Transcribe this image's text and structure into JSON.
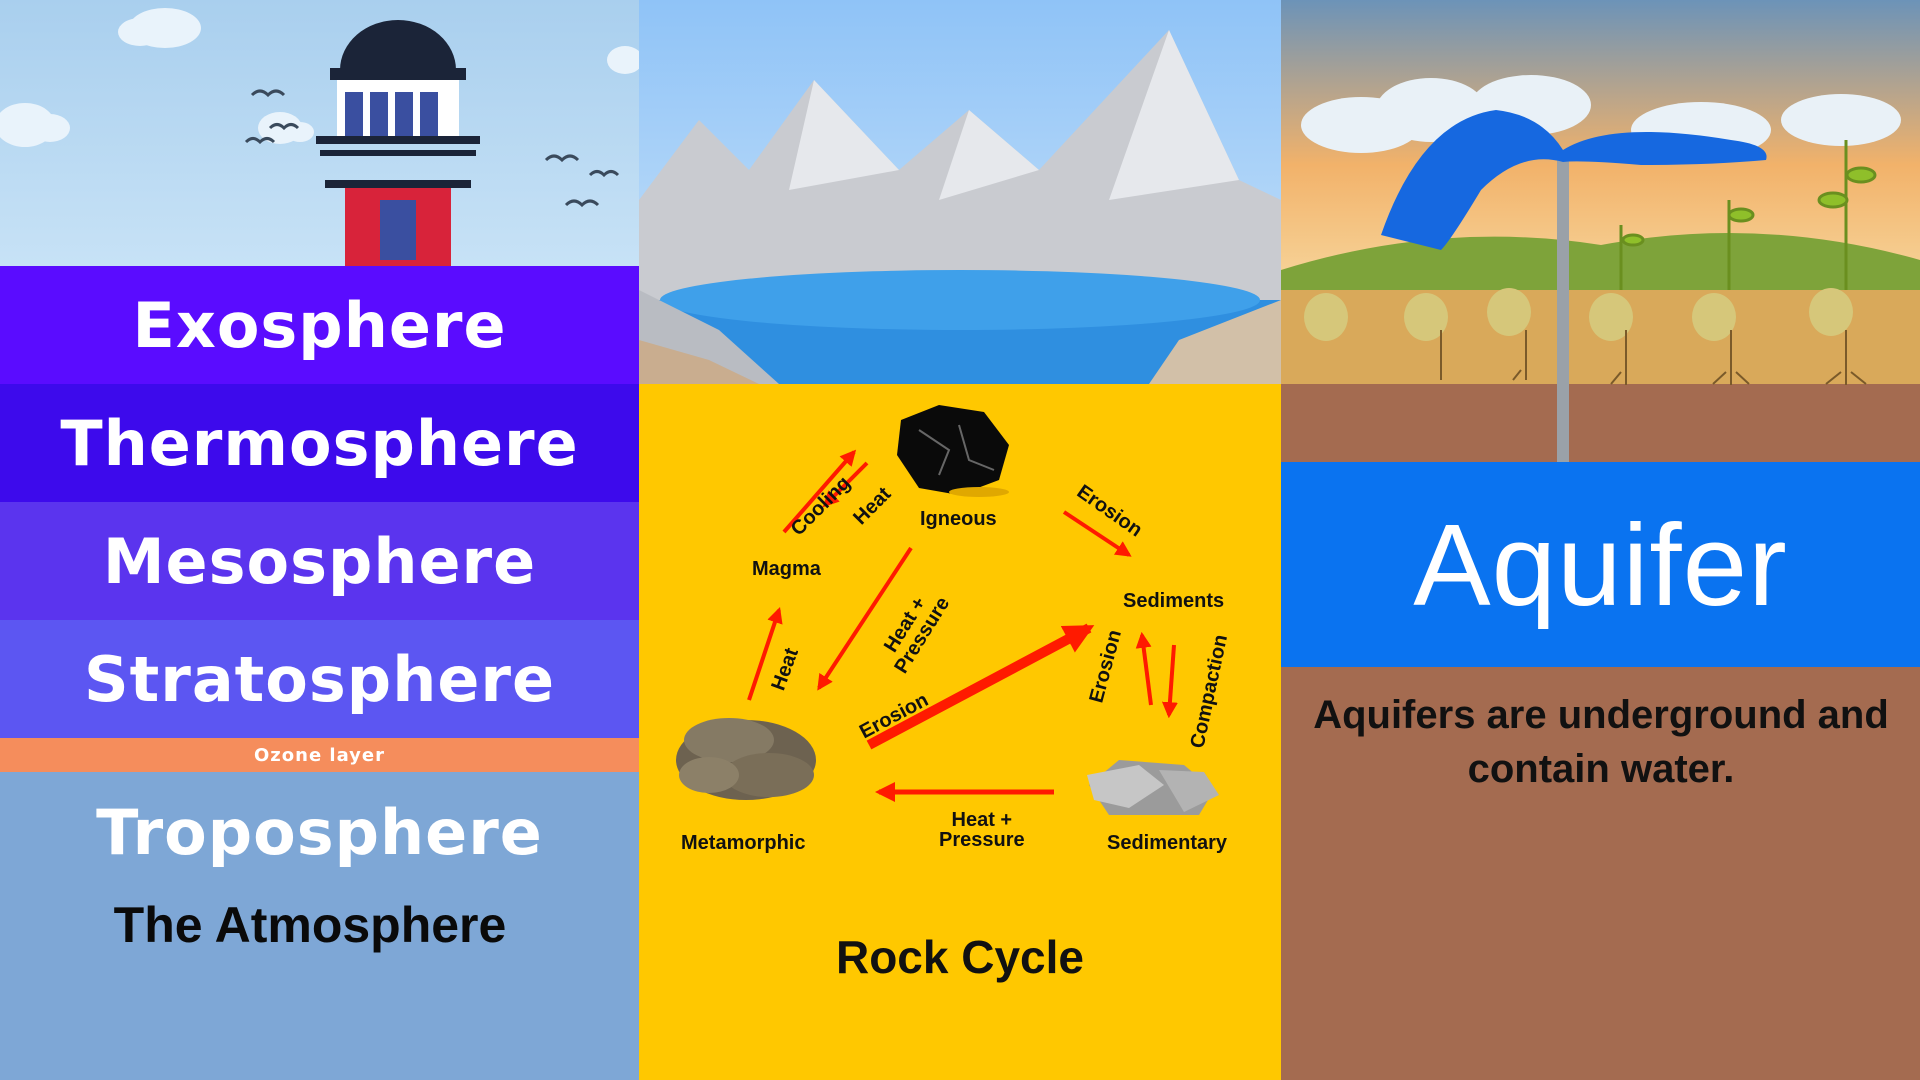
{
  "atmosphere": {
    "layers": [
      {
        "label": "Exosphere",
        "color": "#5a0cff"
      },
      {
        "label": "Thermosphere",
        "color": "#3d0aec"
      },
      {
        "label": "Mesosphere",
        "color": "#5b34ee"
      },
      {
        "label": "Stratosphere",
        "color": "#5c56f2"
      }
    ],
    "ozone_label": "Ozone layer",
    "troposphere_label": "Troposphere",
    "title": "The Atmosphere"
  },
  "rock_cycle": {
    "labels": {
      "igneous": "Igneous",
      "magma": "Magma",
      "sediments": "Sediments",
      "metamorphic": "Metamorphic",
      "sedimentary": "Sedimentary"
    },
    "arrow_labels": {
      "cooling": "Cooling",
      "heat_top": "Heat",
      "erosion_top": "Erosion",
      "heat_pressure_diag_1": "Heat +",
      "heat_pressure_diag_2": "Pressure",
      "heat_left": "Heat",
      "erosion_mid": "Erosion",
      "erosion_right": "Erosion",
      "compaction": "Compaction",
      "heat_pressure_bottom_1": "Heat +",
      "heat_pressure_bottom_2": "Pressure"
    },
    "title": "Rock Cycle",
    "arrow_color": "#ff1a00"
  },
  "aquifer": {
    "title": "Aquifer",
    "description": "Aquifers are underground and contain water.",
    "band_color": "#0a73f0"
  }
}
